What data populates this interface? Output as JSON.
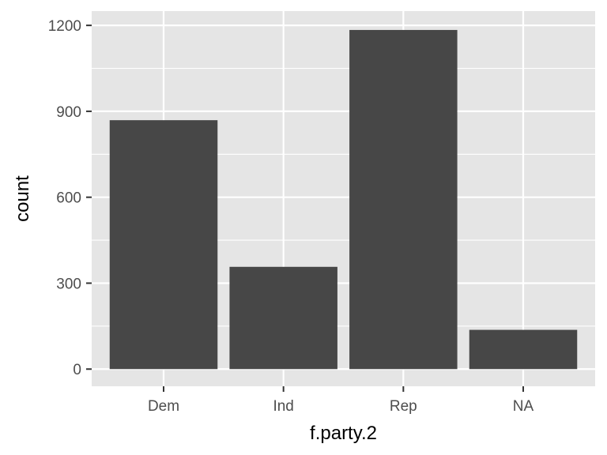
{
  "chart_data": {
    "type": "bar",
    "categories": [
      "Dem",
      "Ind",
      "Rep",
      "NA"
    ],
    "values": [
      869,
      357,
      1184,
      137
    ],
    "xlabel": "f.party.2",
    "ylabel": "count",
    "ylim": [
      -60,
      1250
    ],
    "yticks": [
      0,
      300,
      600,
      900,
      1200
    ],
    "grid": true,
    "colors": {
      "panel": "#e5e5e5",
      "grid": "#ffffff",
      "bar": "#474747",
      "tick_label": "#4d4d4d",
      "tick_mark": "#333333",
      "axis_title": "#000000"
    }
  }
}
